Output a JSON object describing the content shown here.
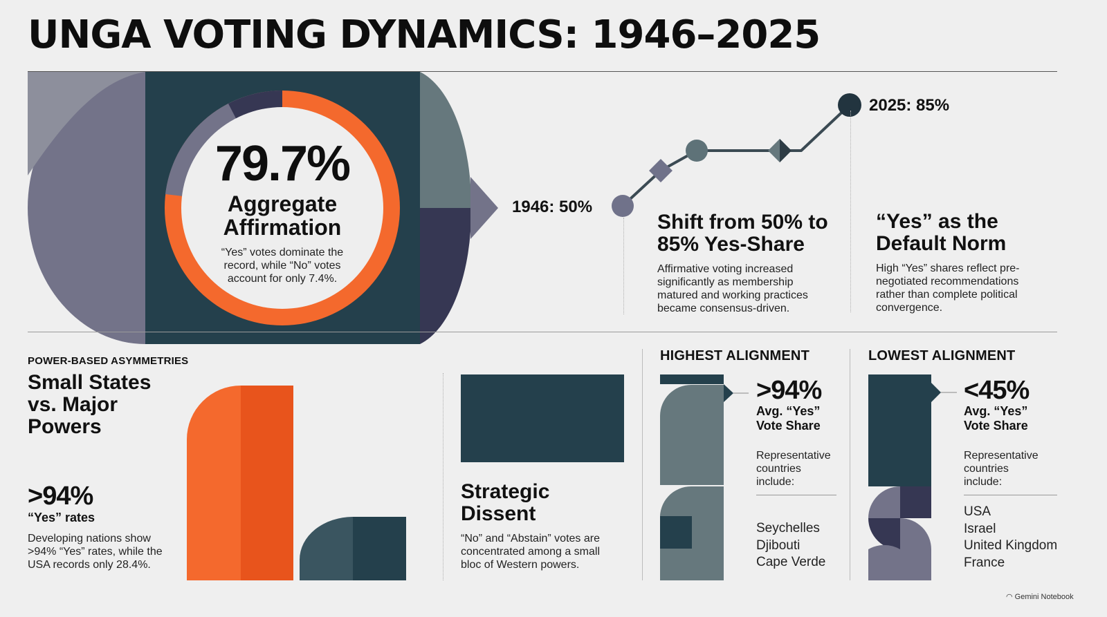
{
  "title": "UNGA VOTING DYNAMICS: 1946–2025",
  "hero": {
    "percent": "79.7%",
    "label_line1": "Aggregate",
    "label_line2": "Affirmation",
    "note_line1": "“Yes” votes dominate the",
    "note_line2": "record, while “No” votes",
    "note_line3": "account for only 7.4%."
  },
  "trend": {
    "start_label": "1946: 50%",
    "end_label": "2025: 85%",
    "colors": {
      "line": "#3b4a53",
      "start_point": "#70728a",
      "mid_point": "#5e7278",
      "diamond": "#2d3b44",
      "end_point": "#22343f"
    }
  },
  "shift": {
    "heading_line1": "Shift from 50% to",
    "heading_line2": "85% Yes-Share",
    "body_line1": "Affirmative voting increased",
    "body_line2": "significantly as membership",
    "body_line3": "matured and working practices",
    "body_line4": "became consensus-driven."
  },
  "norm": {
    "heading_line1": "“Yes” as the",
    "heading_line2": "Default Norm",
    "body_line1": "High “Yes” shares reflect pre-",
    "body_line2": "negotiated recommendations",
    "body_line3": "rather than complete political",
    "body_line4": "convergence."
  },
  "power": {
    "kicker": "POWER-BASED ASYMMETRIES",
    "heading_line1": "Small States",
    "heading_line2": "vs. Major",
    "heading_line3": "Powers",
    "stat": ">94%",
    "stat_sub": "“Yes” rates",
    "body_line1": "Developing nations show",
    "body_line2": ">94% “Yes” rates, while the",
    "body_line3": "USA records only 28.4%."
  },
  "dissent": {
    "heading_line1": "Strategic",
    "heading_line2": "Dissent",
    "body_line1": "“No” and “Abstain” votes are",
    "body_line2": "concentrated among a small",
    "body_line3": "bloc of Western powers."
  },
  "highest": {
    "head": "HIGHEST ALIGNMENT",
    "stat": ">94%",
    "sub_line1": "Avg. “Yes”",
    "sub_line2": "Vote Share",
    "rep_line1": "Representative",
    "rep_line2": "countries",
    "rep_line3": "include:",
    "countries": [
      "Seychelles",
      "Djibouti",
      "Cape Verde"
    ]
  },
  "lowest": {
    "head": "LOWEST ALIGNMENT",
    "stat": "<45%",
    "sub_line1": "Avg. “Yes”",
    "sub_line2": "Vote Share",
    "rep_line1": "Representative",
    "rep_line2": "countries",
    "rep_line3": "include:",
    "countries": [
      "USA",
      "Israel",
      "United Kingdom",
      "France"
    ]
  },
  "credit": "Gemini Notebook",
  "colors": {
    "orange": "#f4692d",
    "orange_dark": "#e8541c",
    "slate": "#24404c",
    "slate_gray": "#66787d",
    "lavender_gray": "#737389",
    "navy": "#363753",
    "background": "#efefef"
  }
}
